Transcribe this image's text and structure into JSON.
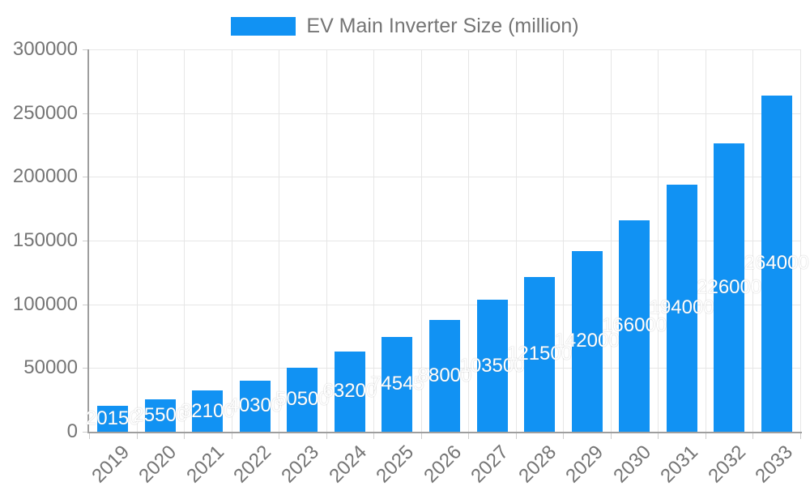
{
  "chart_data": {
    "type": "bar",
    "legend": "EV Main Inverter Size (million)",
    "legend_position": "top",
    "categories": [
      "2019",
      "2020",
      "2021",
      "2022",
      "2023",
      "2024",
      "2025",
      "2026",
      "2027",
      "2028",
      "2029",
      "2030",
      "2031",
      "2032",
      "2033"
    ],
    "values": [
      20150,
      25500,
      32100,
      40300,
      50500,
      63200,
      74545,
      88000,
      103500,
      121500,
      142000,
      166000,
      194000,
      226000,
      264000
    ],
    "bar_value_labels_shown": true,
    "title": "",
    "xlabel": "",
    "ylabel": "",
    "ylim": [
      0,
      300000
    ],
    "y_ticks": [
      0,
      50000,
      100000,
      150000,
      200000,
      250000,
      300000
    ],
    "grid": "both",
    "x_label_rotation_deg": 45,
    "colors": {
      "bar": "#1192f3",
      "axis": "#9e9e9e",
      "grid": "#e6e6e6",
      "tick": "#cccccc",
      "tick_text": "#757575",
      "bar_label_text": "#ffffff",
      "background": "#ffffff"
    }
  }
}
